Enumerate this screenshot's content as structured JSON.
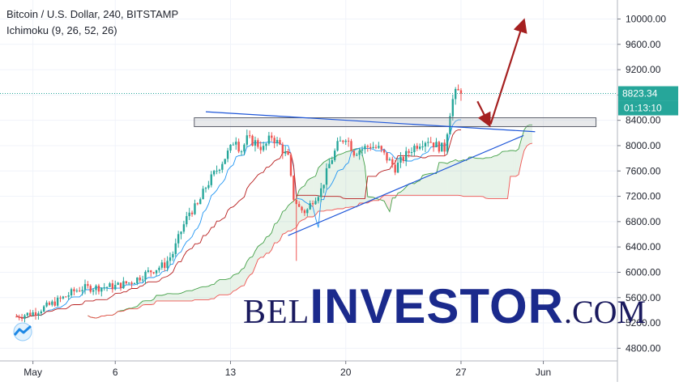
{
  "chart_data": {
    "type": "candlestick",
    "title": "Bitcoin / U.S. Dollar, 240, BITSTAMP",
    "indicator": "Ichimoku (9, 26, 52, 26)",
    "ylim": [
      4600,
      10300
    ],
    "y_ticks": [
      4800,
      5200,
      5600,
      6000,
      6400,
      6800,
      7200,
      7600,
      8000,
      8400,
      8800,
      9200,
      9600,
      10000
    ],
    "y_tick_labels": [
      "4800.00",
      "5200.00",
      "5600.00",
      "6000.00",
      "6400.00",
      "6800.00",
      "7200.00",
      "7600.00",
      "8000.00",
      "8400.00",
      "8800.00",
      "9200.00",
      "9600.00",
      "10000.00"
    ],
    "x_ticks": [
      {
        "label": "May",
        "day": 1
      },
      {
        "label": "6",
        "day": 6
      },
      {
        "label": "13",
        "day": 13
      },
      {
        "label": "20",
        "day": 20
      },
      {
        "label": "27",
        "day": 27
      },
      {
        "label": "Jun",
        "day": 32
      }
    ],
    "xlim_days": [
      -1,
      36.5
    ],
    "last_price": 8823.34,
    "last_price_label": "8823.34",
    "countdown": "01:13:10",
    "price_series": [
      [
        0,
        5300
      ],
      [
        1,
        5360
      ],
      [
        2,
        5480
      ],
      [
        3,
        5620
      ],
      [
        3.5,
        5700
      ],
      [
        4,
        5750
      ],
      [
        5,
        5760
      ],
      [
        6,
        5780
      ],
      [
        7,
        5850
      ],
      [
        8,
        6000
      ],
      [
        9,
        6120
      ],
      [
        9.5,
        6300
      ],
      [
        10,
        6650
      ],
      [
        10.5,
        6950
      ],
      [
        11,
        7050
      ],
      [
        11.5,
        7350
      ],
      [
        12,
        7550
      ],
      [
        12.5,
        7750
      ],
      [
        13,
        7950
      ],
      [
        13.3,
        8150
      ],
      [
        13.6,
        7900
      ],
      [
        14,
        8100
      ],
      [
        14.5,
        8050
      ],
      [
        15,
        7950
      ],
      [
        15.5,
        8150
      ],
      [
        16,
        8000
      ],
      [
        16.5,
        7800
      ],
      [
        16.8,
        7200
      ],
      [
        17.2,
        7000
      ],
      [
        17.6,
        6950
      ],
      [
        18,
        7150
      ],
      [
        18.5,
        7300
      ],
      [
        19,
        7700
      ],
      [
        19.5,
        8000
      ],
      [
        20,
        8150
      ],
      [
        20.5,
        7900
      ],
      [
        21,
        7950
      ],
      [
        21.5,
        8000
      ],
      [
        22,
        7950
      ],
      [
        22.5,
        7800
      ],
      [
        23,
        7650
      ],
      [
        23.5,
        7800
      ],
      [
        24,
        7950
      ],
      [
        24.5,
        8050
      ],
      [
        25,
        8100
      ],
      [
        25.5,
        8000
      ],
      [
        26,
        7950
      ],
      [
        26.2,
        8300
      ],
      [
        26.4,
        8650
      ],
      [
        26.6,
        8800
      ],
      [
        26.8,
        8850
      ],
      [
        27,
        8823
      ]
    ],
    "annotations": {
      "resistance_zone": [
        8300,
        8440
      ],
      "trend_line_upper": [
        [
          11.5,
          8535
        ],
        [
          31.5,
          8220
        ]
      ],
      "trend_line_lower": [
        [
          16.5,
          6580
        ],
        [
          30.8,
          8160
        ]
      ],
      "arrow_down": [
        [
          28.0,
          8700
        ],
        [
          28.7,
          8340
        ]
      ],
      "arrow_up": [
        [
          28.8,
          8340
        ],
        [
          30.8,
          9960
        ]
      ]
    }
  },
  "watermark": {
    "prefix": "BEL",
    "main": "INVESTOR",
    "suffix": ".COM"
  },
  "colors": {
    "up": "#26a69a",
    "down": "#ef5350",
    "kumo_bull": "#43a047",
    "kumo_bear": "#ef5350",
    "tenkan": "#2196f3",
    "kijun": "#b71c1c",
    "trend": "#1e56d8",
    "arrow": "#a52020",
    "price_line": "#26a69a"
  }
}
